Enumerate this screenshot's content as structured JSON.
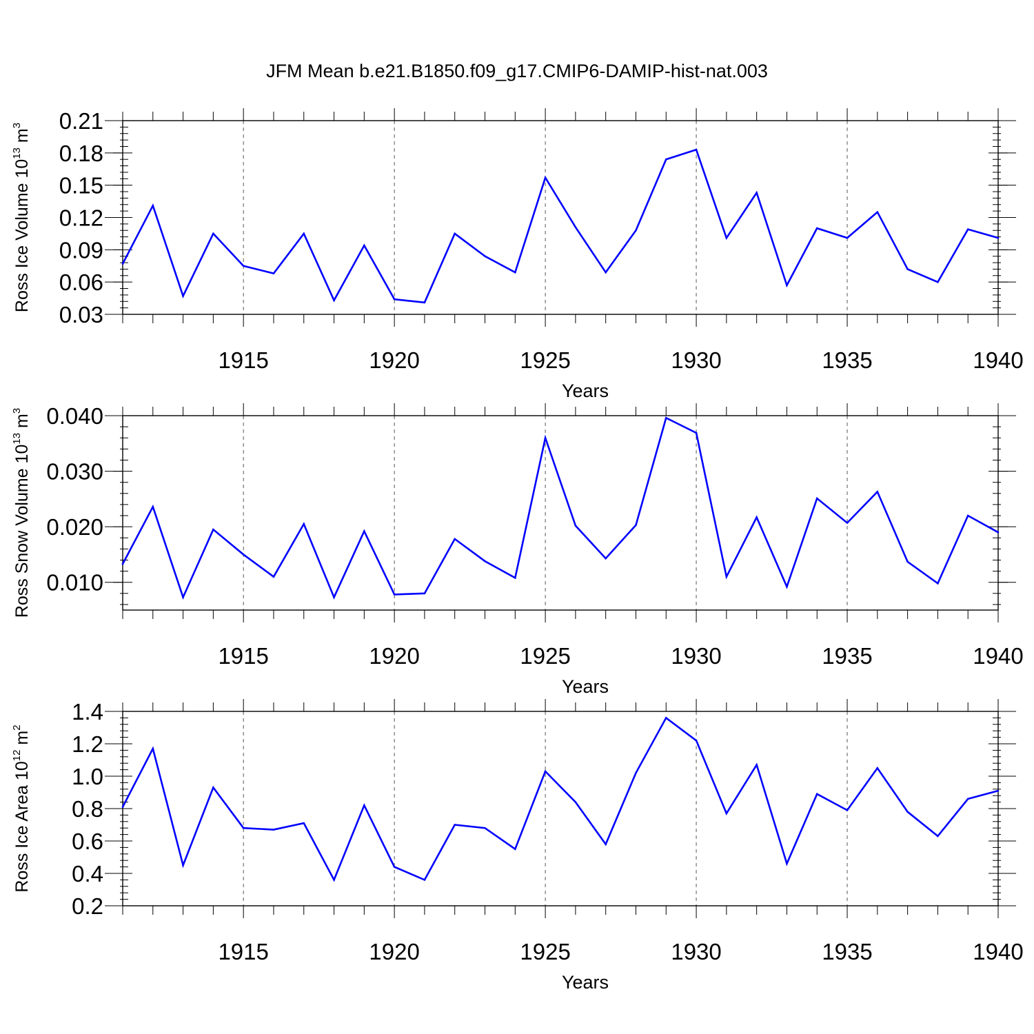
{
  "colors": {
    "line": "#0000ff",
    "axis": "#000000",
    "grid": "#555555",
    "background": "#ffffff"
  },
  "chart_data": {
    "title": "JFM Mean b.e21.B1850.f09_g17.CMIP6-DAMIP-hist-nat.003",
    "panels": [
      {
        "type": "line",
        "title": "",
        "xlabel": "Years",
        "ylabel_base": "Ross Ice Volume 10",
        "ylabel_exp": "13",
        "ylabel_unit": " m",
        "ylabel_unit_exp": "3",
        "xlim": [
          1911,
          1940
        ],
        "ylim": [
          0.03,
          0.21
        ],
        "yticks": [
          0.03,
          0.06,
          0.09,
          0.12,
          0.15,
          0.18,
          0.21
        ],
        "ytick_labels": [
          "0.03",
          "0.06",
          "0.09",
          "0.12",
          "0.15",
          "0.18",
          "0.21"
        ],
        "xticks": [
          1915,
          1920,
          1925,
          1930,
          1935,
          1940
        ],
        "xtick_labels": [
          "1915",
          "1920",
          "1925",
          "1930",
          "1935",
          "1940"
        ],
        "grid": "vertical dashed at major x ticks",
        "series": [
          {
            "x": [
              1911,
              1912,
              1913,
              1914,
              1915,
              1916,
              1917,
              1918,
              1919,
              1920,
              1921,
              1922,
              1923,
              1924,
              1925,
              1926,
              1927,
              1928,
              1929,
              1930,
              1931,
              1932,
              1933,
              1934,
              1935,
              1936,
              1937,
              1938,
              1939,
              1940
            ],
            "values": [
              0.077,
              0.131,
              0.047,
              0.105,
              0.075,
              0.068,
              0.105,
              0.043,
              0.094,
              0.044,
              0.041,
              0.105,
              0.084,
              0.069,
              0.157,
              0.111,
              0.069,
              0.108,
              0.174,
              0.183,
              0.101,
              0.143,
              0.057,
              0.11,
              0.101,
              0.125,
              0.072,
              0.06,
              0.109,
              0.101
            ]
          }
        ]
      },
      {
        "type": "line",
        "title": "",
        "xlabel": "Years",
        "ylabel_base": "Ross Snow Volume 10",
        "ylabel_exp": "13",
        "ylabel_unit": " m",
        "ylabel_unit_exp": "3",
        "xlim": [
          1911,
          1940
        ],
        "ylim": [
          0.005,
          0.04
        ],
        "yticks": [
          0.01,
          0.02,
          0.03,
          0.04
        ],
        "ytick_labels": [
          "0.010",
          "0.020",
          "0.030",
          "0.040"
        ],
        "xticks": [
          1915,
          1920,
          1925,
          1930,
          1935,
          1940
        ],
        "xtick_labels": [
          "1915",
          "1920",
          "1925",
          "1930",
          "1935",
          "1940"
        ],
        "grid": "vertical dashed at major x ticks",
        "series": [
          {
            "x": [
              1911,
              1912,
              1913,
              1914,
              1915,
              1916,
              1917,
              1918,
              1919,
              1920,
              1921,
              1922,
              1923,
              1924,
              1925,
              1926,
              1927,
              1928,
              1929,
              1930,
              1931,
              1932,
              1933,
              1934,
              1935,
              1936,
              1937,
              1938,
              1939,
              1940
            ],
            "values": [
              0.0133,
              0.0236,
              0.0073,
              0.0195,
              0.015,
              0.011,
              0.0205,
              0.0073,
              0.0192,
              0.0078,
              0.008,
              0.0178,
              0.0138,
              0.0108,
              0.036,
              0.0202,
              0.0143,
              0.0203,
              0.0396,
              0.0369,
              0.011,
              0.0217,
              0.0092,
              0.0251,
              0.0207,
              0.0263,
              0.0137,
              0.0098,
              0.022,
              0.019
            ]
          }
        ]
      },
      {
        "type": "line",
        "title": "",
        "xlabel": "Years",
        "ylabel_base": "Ross Ice Area 10",
        "ylabel_exp": "12",
        "ylabel_unit": " m",
        "ylabel_unit_exp": "2",
        "xlim": [
          1911,
          1940
        ],
        "ylim": [
          0.2,
          1.4
        ],
        "yticks": [
          0.2,
          0.4,
          0.6,
          0.8,
          1.0,
          1.2,
          1.4
        ],
        "ytick_labels": [
          "0.2",
          "0.4",
          "0.6",
          "0.8",
          "1.0",
          "1.2",
          "1.4"
        ],
        "xticks": [
          1915,
          1920,
          1925,
          1930,
          1935,
          1940
        ],
        "xtick_labels": [
          "1915",
          "1920",
          "1925",
          "1930",
          "1935",
          "1940"
        ],
        "grid": "vertical dashed at major x ticks",
        "series": [
          {
            "x": [
              1911,
              1912,
              1913,
              1914,
              1915,
              1916,
              1917,
              1918,
              1919,
              1920,
              1921,
              1922,
              1923,
              1924,
              1925,
              1926,
              1927,
              1928,
              1929,
              1930,
              1931,
              1932,
              1933,
              1934,
              1935,
              1936,
              1937,
              1938,
              1939,
              1940
            ],
            "values": [
              0.81,
              1.17,
              0.45,
              0.93,
              0.68,
              0.67,
              0.71,
              0.36,
              0.82,
              0.44,
              0.36,
              0.7,
              0.68,
              0.55,
              1.03,
              0.84,
              0.58,
              1.02,
              1.36,
              1.22,
              0.77,
              1.07,
              0.46,
              0.89,
              0.79,
              1.05,
              0.78,
              0.63,
              0.86,
              0.91
            ]
          }
        ]
      }
    ]
  }
}
